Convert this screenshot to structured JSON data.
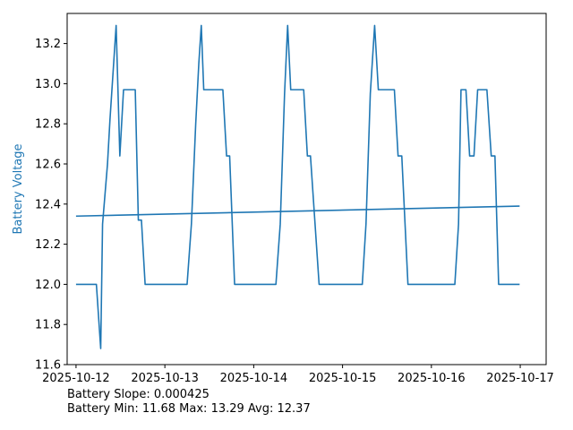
{
  "chart_data": {
    "type": "line",
    "ylabel": "Battery Voltage",
    "xlabel": "",
    "ylim": [
      11.6,
      13.35
    ],
    "xlim": [
      "2025-10-11T21:36",
      "2025-10-17T07:00"
    ],
    "y_ticks": [
      "11.6",
      "11.8",
      "12.0",
      "12.2",
      "12.4",
      "12.6",
      "12.8",
      "13.0",
      "13.2"
    ],
    "x_ticks": [
      "2025-10-12",
      "2025-10-13",
      "2025-10-14",
      "2025-10-15",
      "2025-10-16",
      "2025-10-17"
    ],
    "grid": false,
    "series": [
      {
        "color": "#1f77b4",
        "points": [
          [
            "2025-10-12T00:00",
            12.0
          ],
          [
            "2025-10-12T05:30",
            12.0
          ],
          [
            "2025-10-12T06:40",
            11.68
          ],
          [
            "2025-10-12T07:10",
            12.3
          ],
          [
            "2025-10-12T08:30",
            12.6
          ],
          [
            "2025-10-12T09:10",
            12.82
          ],
          [
            "2025-10-12T10:50",
            13.29
          ],
          [
            "2025-10-12T11:50",
            12.64
          ],
          [
            "2025-10-12T12:50",
            12.97
          ],
          [
            "2025-10-12T16:00",
            12.97
          ],
          [
            "2025-10-12T16:50",
            12.32
          ],
          [
            "2025-10-12T17:40",
            12.32
          ],
          [
            "2025-10-12T18:40",
            12.0
          ],
          [
            "2025-10-13T06:00",
            12.0
          ],
          [
            "2025-10-13T07:10",
            12.3
          ],
          [
            "2025-10-13T08:20",
            12.8
          ],
          [
            "2025-10-13T09:10",
            13.1
          ],
          [
            "2025-10-13T09:50",
            13.29
          ],
          [
            "2025-10-13T10:30",
            12.97
          ],
          [
            "2025-10-13T15:40",
            12.97
          ],
          [
            "2025-10-13T16:40",
            12.64
          ],
          [
            "2025-10-13T17:30",
            12.64
          ],
          [
            "2025-10-13T18:50",
            12.0
          ],
          [
            "2025-10-14T06:00",
            12.0
          ],
          [
            "2025-10-14T07:10",
            12.3
          ],
          [
            "2025-10-14T08:20",
            12.95
          ],
          [
            "2025-10-14T09:10",
            13.29
          ],
          [
            "2025-10-14T10:00",
            12.97
          ],
          [
            "2025-10-14T13:30",
            12.97
          ],
          [
            "2025-10-14T14:30",
            12.64
          ],
          [
            "2025-10-14T15:20",
            12.64
          ],
          [
            "2025-10-14T17:40",
            12.0
          ],
          [
            "2025-10-15T05:20",
            12.0
          ],
          [
            "2025-10-15T06:20",
            12.3
          ],
          [
            "2025-10-15T07:30",
            12.95
          ],
          [
            "2025-10-15T08:40",
            13.29
          ],
          [
            "2025-10-15T09:40",
            12.97
          ],
          [
            "2025-10-15T14:00",
            12.97
          ],
          [
            "2025-10-15T15:00",
            12.64
          ],
          [
            "2025-10-15T16:00",
            12.64
          ],
          [
            "2025-10-15T17:40",
            12.0
          ],
          [
            "2025-10-16T06:20",
            12.0
          ],
          [
            "2025-10-16T07:20",
            12.3
          ],
          [
            "2025-10-16T08:00",
            12.97
          ],
          [
            "2025-10-16T09:20",
            12.97
          ],
          [
            "2025-10-16T10:20",
            12.64
          ],
          [
            "2025-10-16T11:30",
            12.64
          ],
          [
            "2025-10-16T12:30",
            12.97
          ],
          [
            "2025-10-16T15:00",
            12.97
          ],
          [
            "2025-10-16T16:10",
            12.64
          ],
          [
            "2025-10-16T17:10",
            12.64
          ],
          [
            "2025-10-16T18:10",
            12.0
          ],
          [
            "2025-10-16T23:50",
            12.0
          ]
        ]
      },
      {
        "color": "#1f77b4",
        "points": [
          [
            "2025-10-12T00:00",
            12.34
          ],
          [
            "2025-10-16T23:50",
            12.39
          ]
        ]
      }
    ]
  },
  "annotations": {
    "slope_line": "Battery Slope: 0.000425",
    "stats_line": "Battery Min: 11.68 Max: 13.29 Avg: 12.37"
  },
  "colors": {
    "line": "#1f77b4",
    "ylabel": "#1f77b4",
    "axes": "#000000"
  }
}
